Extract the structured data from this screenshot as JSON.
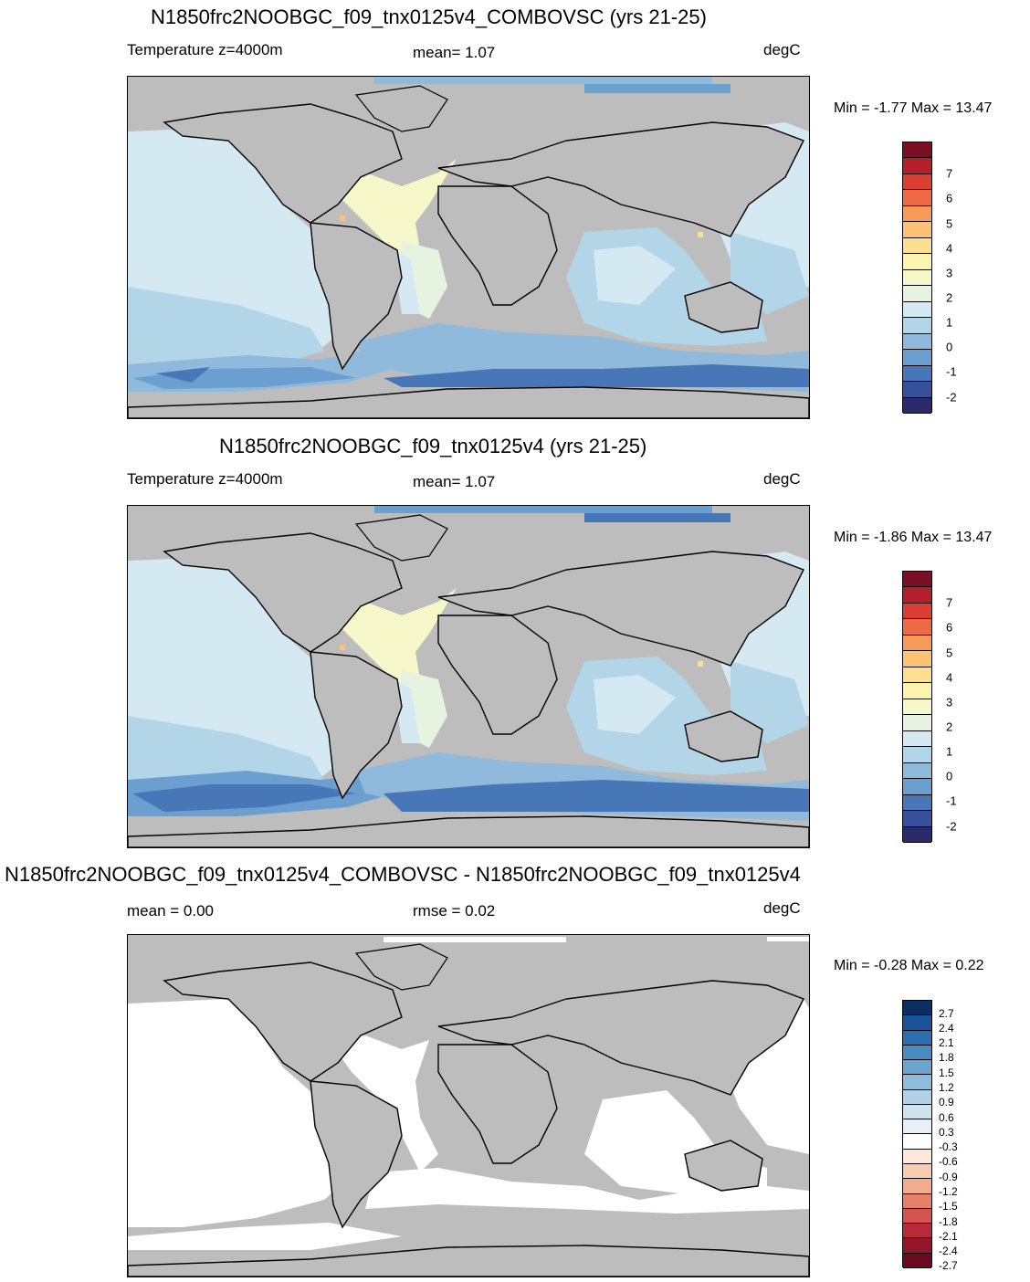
{
  "panels": [
    {
      "title": "N1850frc2NOOBGC_f09_tnx0125v4_COMBOVSC (yrs 21-25)",
      "left_label": "Temperature z=4000m",
      "center_label": "mean=   1.07",
      "units": "degC",
      "minmax": "Min =  -1.77 Max =  13.47",
      "colorbar": {
        "colors": [
          "#2b2a6b",
          "#36509c",
          "#4877b8",
          "#6b9fcf",
          "#8fbadb",
          "#b3d5e8",
          "#d4e9f2",
          "#e6f3e1",
          "#f6f8c9",
          "#fdf3b0",
          "#fde08f",
          "#fdc272",
          "#f89a58",
          "#ee6a45",
          "#dc3e32",
          "#b51f2a",
          "#7b0f25"
        ],
        "labels": [
          "-2",
          "-1",
          "0",
          "1",
          "2",
          "3",
          "4",
          "5",
          "6",
          "7"
        ]
      }
    },
    {
      "title": "N1850frc2NOOBGC_f09_tnx0125v4 (yrs 21-25)",
      "left_label": "Temperature z=4000m",
      "center_label": "mean=   1.07",
      "units": "degC",
      "minmax": "Min =  -1.86 Max =  13.47",
      "colorbar": {
        "colors": [
          "#2b2a6b",
          "#36509c",
          "#4877b8",
          "#6b9fcf",
          "#8fbadb",
          "#b3d5e8",
          "#d4e9f2",
          "#e6f3e1",
          "#f6f8c9",
          "#fdf3b0",
          "#fde08f",
          "#fdc272",
          "#f89a58",
          "#ee6a45",
          "#dc3e32",
          "#b51f2a",
          "#7b0f25"
        ],
        "labels": [
          "-2",
          "-1",
          "0",
          "1",
          "2",
          "3",
          "4",
          "5",
          "6",
          "7"
        ]
      }
    },
    {
      "title": "N1850frc2NOOBGC_f09_tnx0125v4_COMBOVSC - N1850frc2NOOBGC_f09_tnx0125v4",
      "left_label": "mean =   0.00",
      "center_label": "rmse =   0.02",
      "units": "degC",
      "minmax": "Min =  -0.28 Max =   0.22",
      "colorbar": {
        "colors": [
          "#0b2e63",
          "#17539a",
          "#2c6fb0",
          "#4a8bc2",
          "#6aa4d0",
          "#8fbcdc",
          "#b0d1e6",
          "#cfe2ee",
          "#e7f0f6",
          "#ffffff",
          "#fde6da",
          "#f9ccb4",
          "#f3ad8e",
          "#e68068",
          "#d35450",
          "#b82a39",
          "#931728",
          "#6b0a1f"
        ],
        "labels": [
          "2.7",
          "2.4",
          "2.1",
          "1.8",
          "1.5",
          "1.2",
          "0.9",
          "0.6",
          "0.3",
          "-0.3",
          "-0.6",
          "-0.9",
          "-1.2",
          "-1.5",
          "-1.8",
          "-2.1",
          "-2.4",
          "-2.7"
        ]
      }
    }
  ]
}
